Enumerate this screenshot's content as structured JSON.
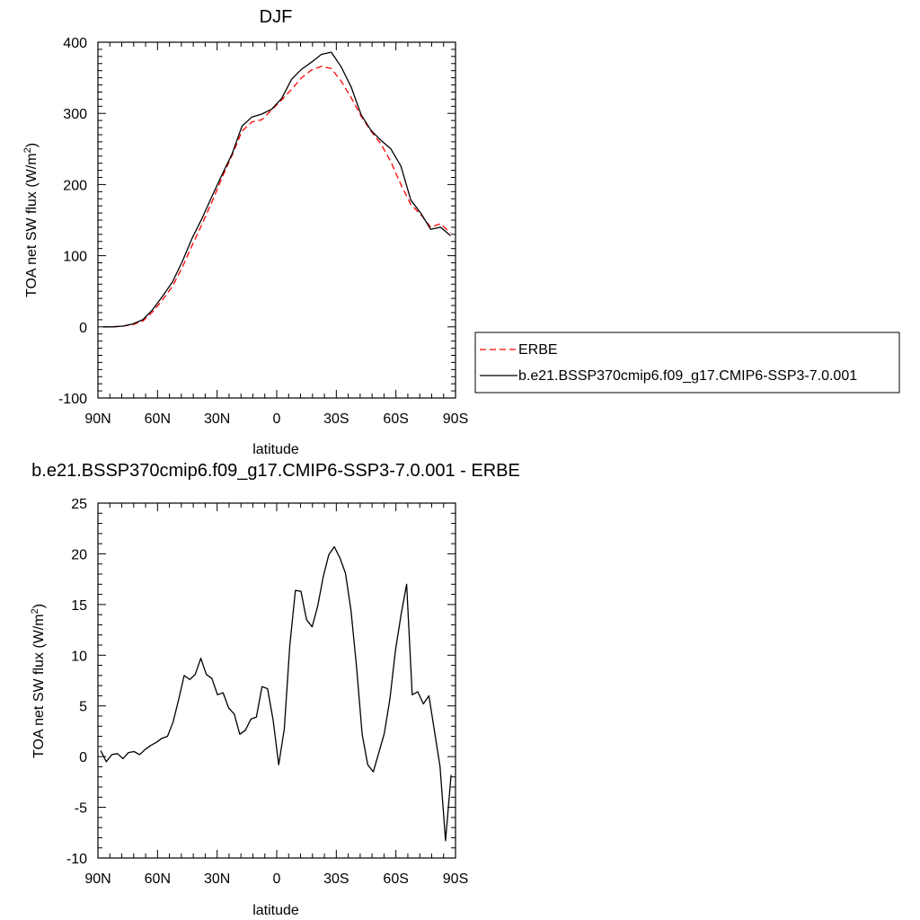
{
  "chart_data": [
    {
      "type": "line",
      "title": "DJF",
      "xlabel": "latitude",
      "ylabel": "TOA net SW flux (W/m",
      "ylabel_sup": "2",
      "ylabel_tail": ")",
      "xlim": [
        -90,
        90
      ],
      "ylim": [
        -100,
        400
      ],
      "x_ticks": [
        -90,
        -60,
        -30,
        0,
        30,
        60,
        90
      ],
      "x_tick_labels": [
        "90N",
        "60N",
        "30N",
        "0",
        "30S",
        "60S",
        "90S"
      ],
      "y_ticks": [
        -100,
        0,
        100,
        200,
        300,
        400
      ],
      "y_tick_labels": [
        "-100",
        "0",
        "100",
        "200",
        "300",
        "400"
      ],
      "legend": "right",
      "series": [
        {
          "name": "ERBE",
          "color": "#ff0000",
          "dash": "dashed",
          "x": [
            -87.5,
            -82.5,
            -77.5,
            -72.5,
            -67.5,
            -62.5,
            -57.5,
            -52.5,
            -47.5,
            -42.5,
            -37.5,
            -32.5,
            -27.5,
            -22.5,
            -17.5,
            -12.5,
            -7.5,
            -2.5,
            2.5,
            7.5,
            12.5,
            17.5,
            22.5,
            27.5,
            32.5,
            37.5,
            42.5,
            47.5,
            52.5,
            57.5,
            62.5,
            67.5,
            72.5,
            77.5,
            82.5,
            87.5
          ],
          "values": [
            0,
            0,
            1,
            3,
            8,
            21,
            38,
            57,
            84,
            115,
            145,
            176,
            210,
            241,
            275,
            288,
            291,
            305,
            319,
            334,
            350,
            361,
            366,
            363,
            345,
            322,
            296,
            275,
            257,
            232,
            200,
            172,
            158,
            140,
            145,
            132
          ]
        },
        {
          "name": "b.e21.BSSP370cmip6.f09_g17.CMIP6-SSP3-7.0.001",
          "color": "#000000",
          "dash": "solid",
          "x": [
            -87.5,
            -82.5,
            -77.5,
            -72.5,
            -67.5,
            -62.5,
            -57.5,
            -52.5,
            -47.5,
            -42.5,
            -37.5,
            -32.5,
            -27.5,
            -22.5,
            -17.5,
            -12.5,
            -7.5,
            -2.5,
            2.5,
            7.5,
            12.5,
            17.5,
            22.5,
            27.5,
            32.5,
            37.5,
            42.5,
            47.5,
            52.5,
            57.5,
            62.5,
            67.5,
            72.5,
            77.5,
            82.5,
            87.5
          ],
          "values": [
            0,
            0,
            1,
            4,
            10,
            24,
            43,
            63,
            92,
            125,
            153,
            184,
            214,
            243,
            282,
            295,
            299,
            306,
            321,
            348,
            362,
            372,
            383,
            386,
            365,
            337,
            298,
            276,
            262,
            250,
            226,
            178,
            160,
            137,
            140,
            128
          ]
        }
      ]
    },
    {
      "type": "line",
      "title": "b.e21.BSSP370cmip6.f09_g17.CMIP6-SSP3-7.0.001 - ERBE",
      "xlabel": "latitude",
      "ylabel": "TOA net SW flux (W/m",
      "ylabel_sup": "2",
      "ylabel_tail": ")",
      "xlim": [
        -90,
        90
      ],
      "ylim": [
        -10,
        25
      ],
      "x_ticks": [
        -90,
        -60,
        -30,
        0,
        30,
        60,
        90
      ],
      "x_tick_labels": [
        "90N",
        "60N",
        "30N",
        "0",
        "30S",
        "60S",
        "90S"
      ],
      "y_ticks": [
        -10,
        -5,
        0,
        5,
        10,
        15,
        20,
        25
      ],
      "y_tick_labels": [
        "-10",
        "-5",
        "0",
        "5",
        "10",
        "15",
        "20",
        "25"
      ],
      "series": [
        {
          "color": "#000000",
          "dash": "solid",
          "x": [
            -88.6,
            -85.8,
            -83.0,
            -80.2,
            -77.4,
            -74.6,
            -71.8,
            -69.0,
            -66.2,
            -63.4,
            -60.6,
            -57.8,
            -55.0,
            -52.2,
            -49.4,
            -46.6,
            -43.8,
            -41.0,
            -38.2,
            -35.4,
            -32.6,
            -29.8,
            -27.0,
            -24.2,
            -21.4,
            -18.6,
            -15.8,
            -13.0,
            -10.2,
            -7.4,
            -4.6,
            -1.8,
            1.0,
            3.8,
            6.6,
            9.4,
            12.2,
            15.0,
            17.8,
            20.6,
            23.4,
            26.2,
            29.0,
            31.8,
            34.6,
            37.4,
            40.2,
            43.0,
            45.8,
            48.6,
            51.4,
            54.2,
            57.0,
            59.8,
            62.6,
            65.4,
            68.2,
            71.0,
            73.8,
            76.6,
            79.4,
            82.2,
            85.0,
            87.8
          ],
          "values": [
            0.6,
            -0.5,
            0.2,
            0.3,
            -0.2,
            0.4,
            0.5,
            0.2,
            0.7,
            1.1,
            1.4,
            1.8,
            2.0,
            3.4,
            5.6,
            8.0,
            7.6,
            8.1,
            9.7,
            8.1,
            7.7,
            6.1,
            6.3,
            4.8,
            4.2,
            2.2,
            2.6,
            3.7,
            3.9,
            6.9,
            6.7,
            3.6,
            -0.8,
            2.7,
            11.0,
            16.4,
            16.3,
            13.5,
            12.8,
            14.8,
            17.7,
            19.9,
            20.7,
            19.6,
            18.1,
            14.4,
            8.8,
            2.2,
            -0.8,
            -1.5,
            0.4,
            2.3,
            5.7,
            10.5,
            14.0,
            17.0,
            6.1,
            6.4,
            5.2,
            6.0,
            2.5,
            -1.0,
            -8.3,
            -1.8
          ]
        }
      ]
    }
  ]
}
